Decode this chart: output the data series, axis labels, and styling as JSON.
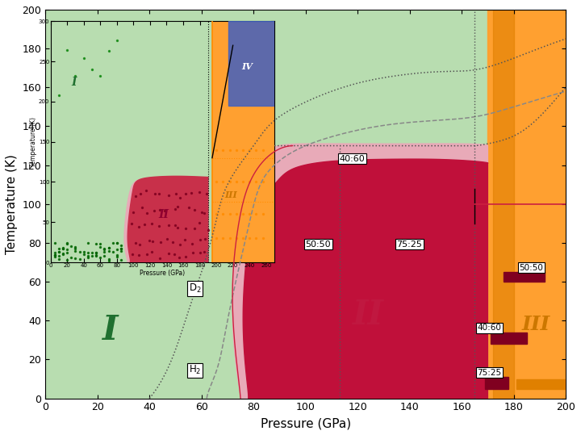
{
  "xlim": [
    0,
    200
  ],
  "ylim": [
    0,
    200
  ],
  "region_I_color": "#b8ddb0",
  "region_II_dark_color": "#c0103a",
  "region_II_light_color": "#e8aab8",
  "region_III_color": "#ffa030",
  "region_III_narrow_color": "#ff8800",
  "label_I_color": "#207030",
  "label_II_color": "#a00030",
  "label_III_color": "#cc7700",
  "dotted_line_color": "#555555",
  "dashed_line_color": "#888888",
  "inset_bg": "#b8ddb0",
  "inset_II_color": "#c8304a",
  "inset_III_color": "#ffa030",
  "inset_IV_color": "#4060c0"
}
